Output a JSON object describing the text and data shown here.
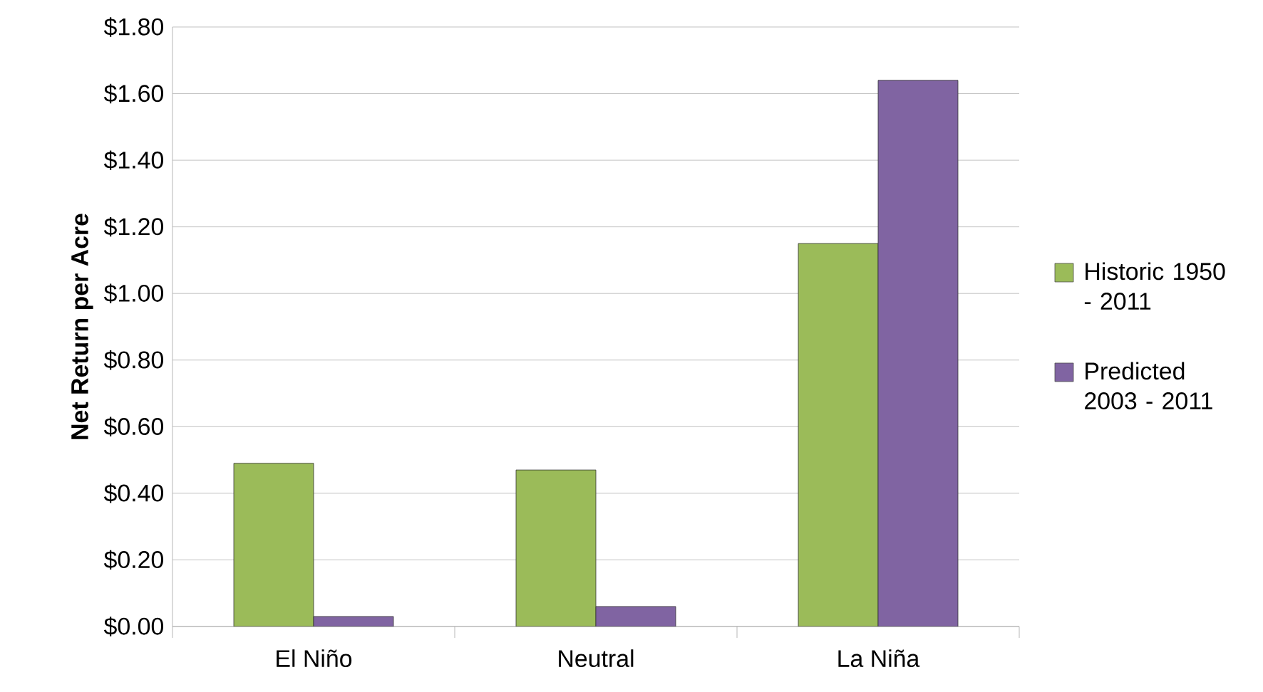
{
  "chart_data": {
    "type": "bar",
    "ylabel": "Net Return per Acre",
    "categories": [
      "El Niño",
      "Neutral",
      "La Niña"
    ],
    "series": [
      {
        "name": "Historic 1950 - 2011",
        "color": "#9bbb59",
        "values": [
          0.49,
          0.47,
          1.15
        ]
      },
      {
        "name": "Predicted 2003 - 2011",
        "color": "#8064a2",
        "values": [
          0.03,
          0.06,
          1.64
        ]
      }
    ],
    "ylim": [
      0,
      1.8
    ],
    "yticks": [
      {
        "value": 0,
        "label": "$0.00"
      },
      {
        "value": 0.2,
        "label": "$0.20"
      },
      {
        "value": 0.4,
        "label": "$0.40"
      },
      {
        "value": 0.6,
        "label": "$0.60"
      },
      {
        "value": 0.8,
        "label": "$0.80"
      },
      {
        "value": 1.0,
        "label": "$1.00"
      },
      {
        "value": 1.2,
        "label": "$1.20"
      },
      {
        "value": 1.4,
        "label": "$1.40"
      },
      {
        "value": 1.6,
        "label": "$1.60"
      },
      {
        "value": 1.8,
        "label": "$1.80"
      }
    ],
    "grid": "y",
    "legend": "right"
  }
}
